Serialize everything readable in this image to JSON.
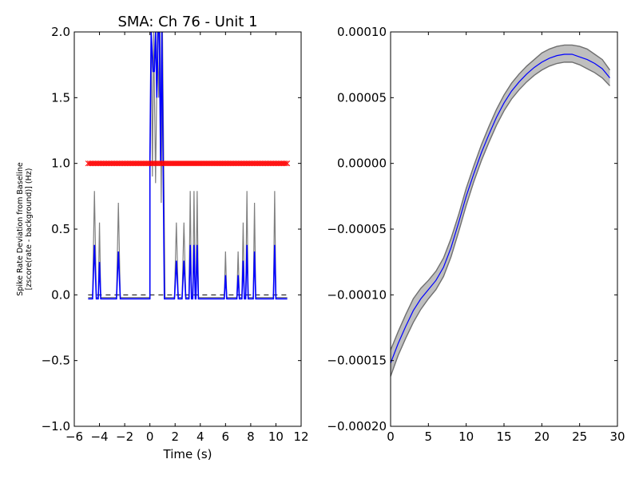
{
  "chart_data": [
    {
      "type": "line",
      "title": "SMA: Ch 76 - Unit 1",
      "xlabel": "Time (s)",
      "ylabel_line1": "Spike Rate Deviation from Baseline",
      "ylabel_line2": "[zscore(rate - background)] (Hz)",
      "xlim": [
        -6,
        12
      ],
      "ylim": [
        -1.0,
        2.0
      ],
      "xticks": [
        -6,
        -4,
        -2,
        0,
        2,
        4,
        6,
        8,
        10,
        12
      ],
      "xtick_labels": [
        "−6",
        "−4",
        "−2",
        "0",
        "2",
        "4",
        "6",
        "8",
        "10",
        "12"
      ],
      "yticks": [
        -1.0,
        -0.5,
        0.0,
        0.5,
        1.0,
        1.5,
        2.0
      ],
      "ytick_labels": [
        "−1.0",
        "−0.5",
        "0.0",
        "0.5",
        "1.0",
        "1.5",
        "2.0"
      ],
      "grid": false,
      "colors": {
        "mean": "#0000ff",
        "upper": "#7f7f7f",
        "markers": "#ff0000",
        "baseline": "#000000"
      },
      "baseline_y": 0.0,
      "marker_row": {
        "y": 1.0,
        "x_start": -4.9,
        "x_end": 10.9,
        "count": 126
      },
      "spikes": [
        {
          "x": -4.4,
          "mean": 0.38,
          "upper": 0.79
        },
        {
          "x": -4.0,
          "mean": 0.25,
          "upper": 0.55
        },
        {
          "x": -2.5,
          "mean": 0.33,
          "upper": 0.7
        },
        {
          "x": 2.1,
          "mean": 0.26,
          "upper": 0.55
        },
        {
          "x": 2.7,
          "mean": 0.26,
          "upper": 0.55
        },
        {
          "x": 3.2,
          "mean": 0.38,
          "upper": 0.79
        },
        {
          "x": 3.5,
          "mean": 0.38,
          "upper": 0.79
        },
        {
          "x": 3.7,
          "mean": 0.38,
          "upper": 0.79
        },
        {
          "x": 6.0,
          "mean": 0.15,
          "upper": 0.33
        },
        {
          "x": 7.0,
          "mean": 0.15,
          "upper": 0.33
        },
        {
          "x": 7.4,
          "mean": 0.26,
          "upper": 0.55
        },
        {
          "x": 7.7,
          "mean": 0.38,
          "upper": 0.79
        },
        {
          "x": 8.3,
          "mean": 0.33,
          "upper": 0.7
        },
        {
          "x": 9.9,
          "mean": 0.38,
          "upper": 0.79
        }
      ],
      "mean_points": [
        [
          -4.9,
          -0.03
        ],
        [
          -4.55,
          -0.03
        ],
        [
          -4.4,
          0.38
        ],
        [
          -4.25,
          -0.03
        ],
        [
          -4.1,
          -0.03
        ],
        [
          -4.0,
          0.25
        ],
        [
          -3.9,
          -0.03
        ],
        [
          -2.65,
          -0.03
        ],
        [
          -2.5,
          0.33
        ],
        [
          -2.35,
          -0.03
        ],
        [
          0.0,
          -0.03
        ],
        [
          0.0,
          1.0
        ],
        [
          0.1,
          2.0
        ],
        [
          0.25,
          1.7
        ],
        [
          0.35,
          1.7
        ],
        [
          0.45,
          2.0
        ],
        [
          0.55,
          1.5
        ],
        [
          0.65,
          2.0
        ],
        [
          0.75,
          2.0
        ],
        [
          0.85,
          1.0
        ],
        [
          0.95,
          2.0
        ],
        [
          1.05,
          1.0
        ],
        [
          1.15,
          -0.03
        ],
        [
          1.95,
          -0.03
        ],
        [
          2.1,
          0.26
        ],
        [
          2.25,
          -0.03
        ],
        [
          2.55,
          -0.03
        ],
        [
          2.7,
          0.26
        ],
        [
          2.85,
          -0.03
        ],
        [
          3.1,
          -0.03
        ],
        [
          3.2,
          0.38
        ],
        [
          3.3,
          -0.03
        ],
        [
          3.4,
          -0.03
        ],
        [
          3.5,
          0.38
        ],
        [
          3.6,
          -0.03
        ],
        [
          3.65,
          -0.03
        ],
        [
          3.75,
          0.38
        ],
        [
          3.85,
          -0.03
        ],
        [
          5.9,
          -0.03
        ],
        [
          6.0,
          0.15
        ],
        [
          6.1,
          -0.03
        ],
        [
          6.9,
          -0.03
        ],
        [
          7.0,
          0.15
        ],
        [
          7.1,
          -0.03
        ],
        [
          7.3,
          -0.03
        ],
        [
          7.4,
          0.26
        ],
        [
          7.5,
          -0.03
        ],
        [
          7.6,
          -0.03
        ],
        [
          7.7,
          0.38
        ],
        [
          7.8,
          -0.03
        ],
        [
          8.2,
          -0.03
        ],
        [
          8.3,
          0.33
        ],
        [
          8.4,
          -0.03
        ],
        [
          9.8,
          -0.03
        ],
        [
          9.9,
          0.38
        ],
        [
          10.0,
          -0.03
        ],
        [
          10.9,
          -0.03
        ]
      ],
      "upper_points": [
        [
          -4.9,
          -0.02
        ],
        [
          -4.55,
          -0.02
        ],
        [
          -4.4,
          0.79
        ],
        [
          -4.25,
          -0.02
        ],
        [
          -4.1,
          -0.02
        ],
        [
          -4.0,
          0.55
        ],
        [
          -3.9,
          -0.02
        ],
        [
          -2.65,
          -0.02
        ],
        [
          -2.5,
          0.7
        ],
        [
          -2.35,
          -0.02
        ],
        [
          0.0,
          -0.02
        ],
        [
          0.0,
          0.85
        ],
        [
          0.1,
          2.0
        ],
        [
          0.2,
          0.9
        ],
        [
          0.3,
          2.0
        ],
        [
          0.45,
          0.85
        ],
        [
          0.6,
          2.0
        ],
        [
          0.7,
          1.5
        ],
        [
          0.8,
          2.0
        ],
        [
          0.9,
          0.7
        ],
        [
          1.0,
          2.0
        ],
        [
          1.1,
          1.0
        ],
        [
          1.2,
          -0.02
        ],
        [
          1.95,
          -0.02
        ],
        [
          2.1,
          0.55
        ],
        [
          2.25,
          -0.02
        ],
        [
          2.55,
          -0.02
        ],
        [
          2.7,
          0.55
        ],
        [
          2.85,
          -0.02
        ],
        [
          3.1,
          -0.02
        ],
        [
          3.2,
          0.79
        ],
        [
          3.3,
          -0.02
        ],
        [
          3.4,
          -0.02
        ],
        [
          3.5,
          0.79
        ],
        [
          3.6,
          -0.02
        ],
        [
          3.65,
          -0.02
        ],
        [
          3.75,
          0.79
        ],
        [
          3.85,
          -0.02
        ],
        [
          5.9,
          -0.02
        ],
        [
          6.0,
          0.33
        ],
        [
          6.1,
          -0.02
        ],
        [
          6.9,
          -0.02
        ],
        [
          7.0,
          0.33
        ],
        [
          7.1,
          -0.02
        ],
        [
          7.3,
          -0.02
        ],
        [
          7.4,
          0.55
        ],
        [
          7.5,
          -0.02
        ],
        [
          7.6,
          -0.02
        ],
        [
          7.7,
          0.79
        ],
        [
          7.8,
          -0.02
        ],
        [
          8.2,
          -0.02
        ],
        [
          8.3,
          0.7
        ],
        [
          8.4,
          -0.02
        ],
        [
          9.8,
          -0.02
        ],
        [
          9.9,
          0.79
        ],
        [
          10.0,
          -0.02
        ],
        [
          10.9,
          -0.02
        ]
      ]
    },
    {
      "type": "area",
      "title": "",
      "xlabel": "",
      "ylabel": "",
      "xlim": [
        0,
        30
      ],
      "ylim": [
        -0.0002,
        0.0001
      ],
      "xticks": [
        0,
        5,
        10,
        15,
        20,
        25,
        30
      ],
      "xtick_labels": [
        "0",
        "5",
        "10",
        "15",
        "20",
        "25",
        "30"
      ],
      "yticks": [
        -0.0002,
        -0.00015,
        -0.0001,
        -5e-05,
        0.0,
        5e-05,
        0.0001
      ],
      "ytick_labels": [
        "−0.00020",
        "−0.00015",
        "−0.00010",
        "−0.00005",
        "0.00000",
        "0.00005",
        "0.00010"
      ],
      "grid": false,
      "colors": {
        "mean": "#0000ff",
        "band_fill": "#bfbfbf",
        "band_edge": "#6f6f6f"
      },
      "x": [
        0,
        1,
        2,
        3,
        4,
        5,
        6,
        7,
        8,
        9,
        10,
        11,
        12,
        13,
        14,
        15,
        16,
        17,
        18,
        19,
        20,
        21,
        22,
        23,
        24,
        25,
        26,
        27,
        28,
        29
      ],
      "mean": [
        -0.000152,
        -0.000137,
        -0.000124,
        -0.000112,
        -0.000103,
        -9.6e-05,
        -8.9e-05,
        -7.9e-05,
        -6.4e-05,
        -4.5e-05,
        -2.5e-05,
        -8e-06,
        8e-06,
        2.2e-05,
        3.5e-05,
        4.6e-05,
        5.5e-05,
        6.2e-05,
        6.8e-05,
        7.3e-05,
        7.7e-05,
        8e-05,
        8.2e-05,
        8.3e-05,
        8.3e-05,
        8.1e-05,
        7.9e-05,
        7.6e-05,
        7.2e-05,
        6.5e-05
      ],
      "upper": [
        -0.000142,
        -0.000128,
        -0.000115,
        -0.000103,
        -9.5e-05,
        -8.9e-05,
        -8.2e-05,
        -7.2e-05,
        -5.7e-05,
        -3.9e-05,
        -1.9e-05,
        -2e-06,
        1.4e-05,
        2.8e-05,
        4.1e-05,
        5.2e-05,
        6.1e-05,
        6.8e-05,
        7.4e-05,
        7.9e-05,
        8.4e-05,
        8.7e-05,
        8.9e-05,
        9e-05,
        9e-05,
        8.9e-05,
        8.7e-05,
        8.3e-05,
        7.9e-05,
        7.1e-05
      ],
      "lower": [
        -0.000162,
        -0.000146,
        -0.000133,
        -0.000121,
        -0.000111,
        -0.000103,
        -9.6e-05,
        -8.6e-05,
        -7.1e-05,
        -5.2e-05,
        -3.2e-05,
        -1.4e-05,
        2e-06,
        1.6e-05,
        2.9e-05,
        4e-05,
        4.9e-05,
        5.6e-05,
        6.2e-05,
        6.7e-05,
        7.1e-05,
        7.4e-05,
        7.6e-05,
        7.7e-05,
        7.7e-05,
        7.5e-05,
        7.2e-05,
        6.9e-05,
        6.5e-05,
        5.9e-05
      ]
    }
  ]
}
